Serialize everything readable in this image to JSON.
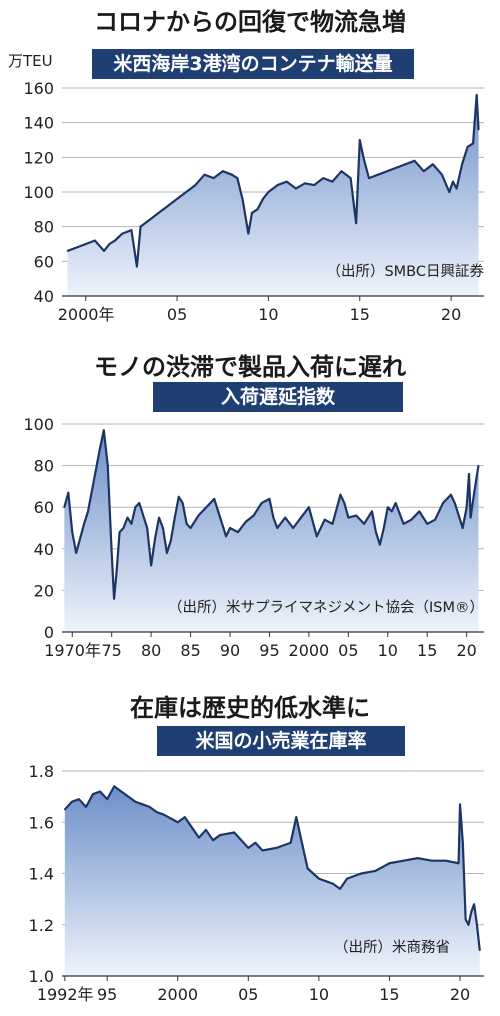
{
  "colors": {
    "banner": "#1f3f73",
    "line": "#1d3565",
    "area_top": "#6d8fc8",
    "area_bottom": "#eef3fb",
    "grid": "#b5b5b5"
  },
  "panels": [
    {
      "headline": "コロナからの回復で物流急増",
      "banner": "米西海岸3港湾のコンテナ輸送量",
      "unit": "万TEU",
      "source": "（出所）SMBC日興証券",
      "y_tick_labels": [
        "40",
        "60",
        "80",
        "100",
        "120",
        "140",
        "160"
      ],
      "x_tick_labels": [
        "2000年",
        "05",
        "10",
        "15",
        "20"
      ]
    },
    {
      "headline": "モノの渋滞で製品入荷に遅れ",
      "banner": "入荷遅延指数",
      "source": "（出所）米サプライマネジメント協会（ISM®）",
      "y_tick_labels": [
        "0",
        "20",
        "40",
        "60",
        "80",
        "100"
      ],
      "x_tick_labels": [
        "1970年",
        "75",
        "80",
        "85",
        "90",
        "95",
        "2000",
        "05",
        "10",
        "15",
        "20"
      ]
    },
    {
      "headline": "在庫は歴史的低水準に",
      "banner": "米国の小売業在庫率",
      "source": "（出所）米商務省",
      "y_tick_labels": [
        "1.0",
        "1.2",
        "1.4",
        "1.6",
        "1.8"
      ],
      "x_tick_labels": [
        "1992年",
        "95",
        "2000",
        "05",
        "10",
        "15",
        "20"
      ]
    }
  ],
  "chart_data": [
    {
      "type": "area",
      "title": "米西海岸3港湾のコンテナ輸送量",
      "ylabel": "万TEU",
      "ylim": [
        40,
        160
      ],
      "xlim": [
        1998.7,
        2021.8
      ],
      "x": [
        1999.0,
        1999.5,
        2000.0,
        2000.5,
        2001.0,
        2001.3,
        2001.6,
        2002.0,
        2002.5,
        2002.8,
        2003.0,
        2003.5,
        2004.0,
        2004.5,
        2005.0,
        2005.5,
        2006.0,
        2006.5,
        2007.0,
        2007.5,
        2008.0,
        2008.3,
        2008.6,
        2008.9,
        2009.1,
        2009.4,
        2009.7,
        2010.0,
        2010.5,
        2011.0,
        2011.5,
        2012.0,
        2012.5,
        2013.0,
        2013.5,
        2014.0,
        2014.5,
        2014.8,
        2015.0,
        2015.2,
        2015.5,
        2016.0,
        2016.5,
        2017.0,
        2017.5,
        2018.0,
        2018.5,
        2019.0,
        2019.5,
        2019.9,
        2020.1,
        2020.3,
        2020.6,
        2020.9,
        2021.2,
        2021.4,
        2021.5
      ],
      "y": [
        66,
        68,
        70,
        72,
        66,
        70,
        72,
        76,
        78,
        57,
        80,
        84,
        88,
        92,
        96,
        100,
        104,
        110,
        108,
        112,
        110,
        108,
        95,
        76,
        88,
        90,
        96,
        100,
        104,
        106,
        102,
        105,
        104,
        108,
        106,
        112,
        108,
        82,
        130,
        120,
        108,
        110,
        112,
        114,
        116,
        118,
        112,
        116,
        110,
        100,
        106,
        102,
        116,
        126,
        128,
        156,
        136
      ]
    },
    {
      "type": "area",
      "title": "入荷遅延指数",
      "ylim": [
        0,
        100
      ],
      "xlim": [
        1968.7,
        2022.2
      ],
      "x": [
        1969.0,
        1969.5,
        1970.0,
        1970.5,
        1971.0,
        1971.5,
        1972.0,
        1972.5,
        1973.0,
        1973.5,
        1974.0,
        1974.5,
        1975.0,
        1975.3,
        1975.6,
        1976.0,
        1976.5,
        1977.0,
        1977.5,
        1978.0,
        1978.5,
        1979.0,
        1979.5,
        1980.0,
        1980.5,
        1981.0,
        1981.5,
        1982.0,
        1982.5,
        1983.0,
        1983.5,
        1984.0,
        1984.5,
        1985.0,
        1986.0,
        1987.0,
        1988.0,
        1988.5,
        1989.0,
        1989.5,
        1990.0,
        1991.0,
        1992.0,
        1993.0,
        1994.0,
        1995.0,
        1995.5,
        1996.0,
        1997.0,
        1998.0,
        1999.0,
        2000.0,
        2001.0,
        2002.0,
        2003.0,
        2004.0,
        2004.5,
        2005.0,
        2006.0,
        2007.0,
        2008.0,
        2008.5,
        2009.0,
        2009.5,
        2010.0,
        2010.5,
        2011.0,
        2012.0,
        2013.0,
        2014.0,
        2015.0,
        2016.0,
        2017.0,
        2018.0,
        2018.5,
        2019.0,
        2019.5,
        2020.0,
        2020.3,
        2020.5,
        2021.0,
        2021.5
      ],
      "y": [
        60,
        67,
        48,
        38,
        45,
        52,
        58,
        68,
        78,
        88,
        97,
        80,
        38,
        16,
        28,
        48,
        50,
        55,
        52,
        60,
        62,
        56,
        50,
        32,
        45,
        55,
        50,
        38,
        44,
        55,
        65,
        62,
        52,
        50,
        56,
        60,
        64,
        58,
        52,
        46,
        50,
        48,
        53,
        56,
        62,
        64,
        55,
        50,
        55,
        50,
        55,
        60,
        46,
        54,
        52,
        66,
        62,
        55,
        56,
        52,
        58,
        48,
        42,
        50,
        60,
        58,
        62,
        52,
        54,
        58,
        52,
        54,
        62,
        66,
        62,
        56,
        50,
        60,
        76,
        55,
        68,
        80
      ]
    },
    {
      "type": "area",
      "title": "米国の小売業在庫率",
      "ylim": [
        1.0,
        1.8
      ],
      "xlim": [
        1991.8,
        2021.7
      ],
      "x": [
        1992.0,
        1992.5,
        1993.0,
        1993.5,
        1994.0,
        1994.5,
        1995.0,
        1995.5,
        1996.0,
        1996.5,
        1997.0,
        1997.5,
        1998.0,
        1998.5,
        1999.0,
        2000.0,
        2000.5,
        2001.0,
        2001.5,
        2002.0,
        2002.5,
        2003.0,
        2004.0,
        2005.0,
        2005.5,
        2006.0,
        2007.0,
        2008.0,
        2008.4,
        2008.8,
        2009.2,
        2009.6,
        2010.0,
        2010.5,
        2011.0,
        2011.5,
        2012.0,
        2013.0,
        2014.0,
        2015.0,
        2016.0,
        2017.0,
        2018.0,
        2019.0,
        2019.9,
        2020.0,
        2020.2,
        2020.4,
        2020.6,
        2020.8,
        2021.0,
        2021.2,
        2021.4
      ],
      "y": [
        1.65,
        1.68,
        1.69,
        1.66,
        1.71,
        1.72,
        1.69,
        1.74,
        1.72,
        1.7,
        1.68,
        1.67,
        1.66,
        1.64,
        1.63,
        1.6,
        1.62,
        1.58,
        1.54,
        1.57,
        1.53,
        1.55,
        1.56,
        1.5,
        1.52,
        1.49,
        1.5,
        1.52,
        1.62,
        1.52,
        1.42,
        1.4,
        1.38,
        1.37,
        1.36,
        1.34,
        1.38,
        1.4,
        1.41,
        1.44,
        1.45,
        1.46,
        1.45,
        1.45,
        1.44,
        1.67,
        1.52,
        1.22,
        1.2,
        1.25,
        1.28,
        1.2,
        1.1
      ]
    }
  ]
}
